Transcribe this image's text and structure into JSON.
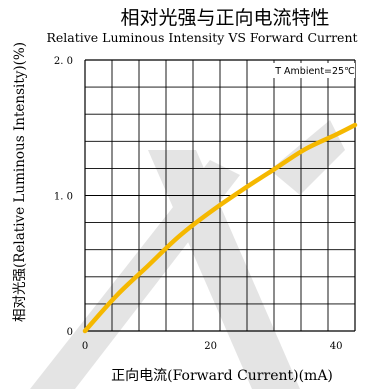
{
  "chart_data": {
    "type": "line",
    "title": "相对光强与正向电流特性",
    "subtitle": "Relative Luminous Intensity VS Forward Current",
    "xlabel": "正向电流(Forward Current)(mA)",
    "ylabel": "相对光强(Relative Luminous Intensity)(%)",
    "annotation": "T Ambient=25℃",
    "xlim": [
      0,
      43
    ],
    "ylim": [
      0,
      2.0
    ],
    "x_ticks": [
      0,
      20,
      40
    ],
    "x_tick_labels": [
      "0",
      "20",
      "40"
    ],
    "y_ticks": [
      0,
      1.0,
      2.0
    ],
    "y_tick_labels": [
      "0",
      "1. 0",
      "2. 0"
    ],
    "grid": true,
    "series": [
      {
        "color": "#f5b800",
        "x": [
          0,
          5,
          10,
          15,
          20,
          25,
          30,
          35,
          40,
          43
        ],
        "y": [
          0,
          0.26,
          0.48,
          0.7,
          0.88,
          1.04,
          1.19,
          1.34,
          1.45,
          1.52
        ]
      }
    ],
    "watermark_color": "#e4e4e4",
    "grid_color": "#000000"
  }
}
